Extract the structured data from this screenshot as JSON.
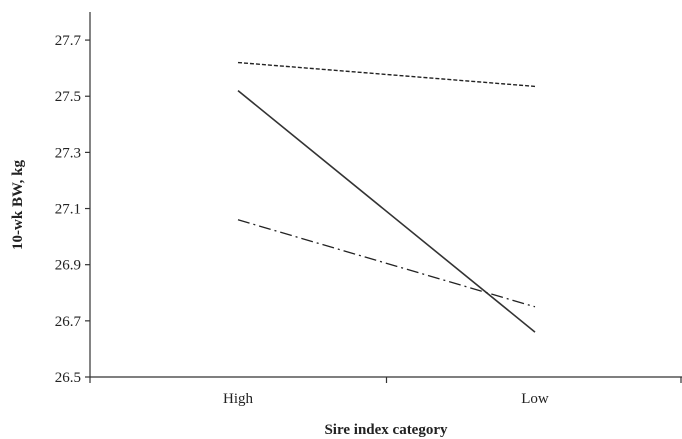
{
  "chart_data": {
    "type": "line",
    "categories": [
      "High",
      "Low"
    ],
    "series": [
      {
        "values": [
          27.62,
          27.535
        ],
        "line_style": "dashed",
        "color": "#222222"
      },
      {
        "values": [
          27.52,
          26.66
        ],
        "line_style": "solid",
        "color": "#333333"
      },
      {
        "values": [
          27.06,
          26.75
        ],
        "line_style": "dash-dot",
        "color": "#222222"
      }
    ],
    "title": "",
    "xlabel": "Sire index category",
    "ylabel": "10-wk BW, kg",
    "ylim": [
      26.5,
      27.8
    ],
    "yticks": [
      "26.5",
      "26.7",
      "26.9",
      "27.1",
      "27.3",
      "27.5",
      "27.7"
    ],
    "ytick_values": [
      26.5,
      26.7,
      26.9,
      27.1,
      27.3,
      27.5,
      27.7
    ],
    "grid": false,
    "legend": "none"
  }
}
